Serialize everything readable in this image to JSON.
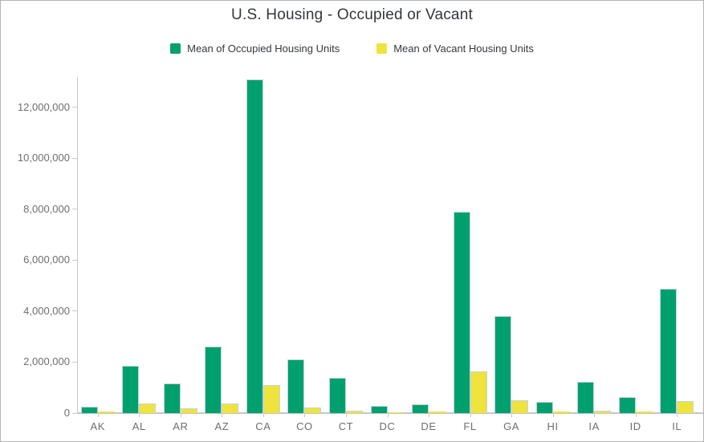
{
  "chart_data": {
    "type": "bar",
    "title": "U.S. Housing - Occupied or Vacant",
    "xlabel": "",
    "ylabel": "",
    "categories": [
      "AK",
      "AL",
      "AR",
      "AZ",
      "CA",
      "CO",
      "CT",
      "DC",
      "DE",
      "FL",
      "GA",
      "HI",
      "IA",
      "ID",
      "IL"
    ],
    "series": [
      {
        "name": "Mean of Occupied Housing Units",
        "color": "#00a06e",
        "values": [
          250000,
          1860000,
          1150000,
          2620000,
          13100000,
          2120000,
          1370000,
          270000,
          350000,
          7900000,
          3810000,
          440000,
          1240000,
          620000,
          4860000
        ]
      },
      {
        "name": "Mean of Vacant Housing Units",
        "color": "#efe33d",
        "values": [
          60000,
          380000,
          200000,
          390000,
          1100000,
          210000,
          110000,
          30000,
          70000,
          1620000,
          490000,
          55000,
          105000,
          55000,
          470000
        ]
      }
    ],
    "ylim": [
      0,
      13180000
    ],
    "yticks": [
      0,
      2000000,
      4000000,
      6000000,
      8000000,
      10000000,
      12000000
    ],
    "grid": false,
    "legend_position": "top"
  },
  "colors": {
    "occupied": "#00a06e",
    "vacant": "#efe33d",
    "axis": "#c9c9c9",
    "axis_labels": "#6e6e6e",
    "title_text": "#33373c",
    "legend_text": "#35393e",
    "bar_outline": "#c4d2d8",
    "frame_border": "#b2b2b8",
    "background": "#ffffff"
  }
}
